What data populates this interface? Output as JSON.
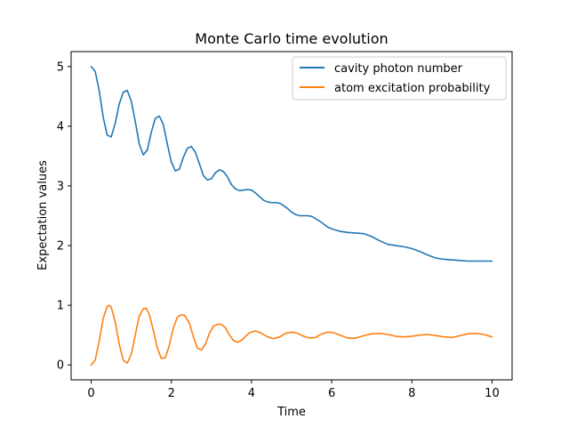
{
  "chart_data": {
    "type": "line",
    "title": "Monte Carlo time evolution",
    "xlabel": "Time",
    "ylabel": "Expectation values",
    "xlim": [
      -0.5,
      10.5
    ],
    "ylim": [
      -0.25,
      5.25
    ],
    "xticks": [
      0,
      2,
      4,
      6,
      8,
      10
    ],
    "yticks": [
      0,
      1,
      2,
      3,
      4,
      5
    ],
    "grid": false,
    "legend_position": "upper right",
    "series": [
      {
        "name": "cavity photon number",
        "color": "#1f77b4",
        "x": [
          0,
          0.1,
          0.2,
          0.3,
          0.4,
          0.5,
          0.6,
          0.7,
          0.8,
          0.9,
          1.0,
          1.1,
          1.2,
          1.3,
          1.4,
          1.5,
          1.6,
          1.7,
          1.8,
          1.9,
          2.0,
          2.1,
          2.2,
          2.3,
          2.4,
          2.5,
          2.6,
          2.7,
          2.8,
          2.9,
          3.0,
          3.1,
          3.2,
          3.3,
          3.4,
          3.5,
          3.6,
          3.7,
          3.8,
          3.9,
          4.0,
          4.1,
          4.2,
          4.3,
          4.4,
          4.5,
          4.6,
          4.7,
          4.8,
          4.9,
          5.0,
          5.1,
          5.2,
          5.3,
          5.4,
          5.5,
          5.6,
          5.7,
          5.8,
          5.9,
          6.0,
          6.2,
          6.4,
          6.6,
          6.8,
          7.0,
          7.2,
          7.4,
          7.6,
          7.8,
          8.0,
          8.2,
          8.4,
          8.6,
          8.8,
          9.0,
          9.2,
          9.4,
          9.6,
          9.8,
          10.0
        ],
        "values": [
          5.0,
          4.92,
          4.6,
          4.15,
          3.85,
          3.82,
          4.05,
          4.37,
          4.57,
          4.6,
          4.42,
          4.08,
          3.7,
          3.52,
          3.6,
          3.9,
          4.13,
          4.17,
          4.03,
          3.7,
          3.4,
          3.25,
          3.28,
          3.48,
          3.63,
          3.66,
          3.56,
          3.37,
          3.17,
          3.1,
          3.12,
          3.22,
          3.27,
          3.24,
          3.15,
          3.02,
          2.95,
          2.92,
          2.93,
          2.94,
          2.93,
          2.88,
          2.82,
          2.76,
          2.73,
          2.72,
          2.72,
          2.71,
          2.67,
          2.62,
          2.56,
          2.52,
          2.5,
          2.5,
          2.5,
          2.49,
          2.45,
          2.41,
          2.36,
          2.31,
          2.28,
          2.24,
          2.22,
          2.21,
          2.2,
          2.15,
          2.08,
          2.02,
          2.0,
          1.98,
          1.95,
          1.9,
          1.84,
          1.79,
          1.77,
          1.76,
          1.75,
          1.74,
          1.74,
          1.74,
          1.74
        ]
      },
      {
        "name": "atom excitation probability",
        "color": "#ff7f0e",
        "x": [
          0,
          0.1,
          0.2,
          0.3,
          0.4,
          0.45,
          0.5,
          0.6,
          0.7,
          0.8,
          0.9,
          1.0,
          1.1,
          1.2,
          1.3,
          1.37,
          1.45,
          1.55,
          1.65,
          1.75,
          1.85,
          1.95,
          2.05,
          2.15,
          2.25,
          2.33,
          2.45,
          2.55,
          2.65,
          2.75,
          2.85,
          2.95,
          3.05,
          3.15,
          3.25,
          3.35,
          3.45,
          3.55,
          3.65,
          3.75,
          3.85,
          3.95,
          4.1,
          4.25,
          4.4,
          4.55,
          4.7,
          4.85,
          5.0,
          5.15,
          5.3,
          5.45,
          5.6,
          5.75,
          5.9,
          6.05,
          6.2,
          6.4,
          6.6,
          6.8,
          7.0,
          7.2,
          7.4,
          7.6,
          7.8,
          8.0,
          8.2,
          8.4,
          8.6,
          8.8,
          9.0,
          9.2,
          9.4,
          9.6,
          9.8,
          10.0
        ],
        "values": [
          0.0,
          0.08,
          0.4,
          0.78,
          0.98,
          1.0,
          0.97,
          0.72,
          0.35,
          0.08,
          0.03,
          0.18,
          0.5,
          0.82,
          0.94,
          0.95,
          0.85,
          0.58,
          0.28,
          0.11,
          0.12,
          0.33,
          0.62,
          0.8,
          0.84,
          0.83,
          0.7,
          0.47,
          0.28,
          0.25,
          0.35,
          0.53,
          0.65,
          0.68,
          0.68,
          0.62,
          0.5,
          0.41,
          0.38,
          0.41,
          0.48,
          0.54,
          0.57,
          0.53,
          0.47,
          0.44,
          0.47,
          0.53,
          0.55,
          0.53,
          0.48,
          0.45,
          0.46,
          0.52,
          0.55,
          0.54,
          0.5,
          0.45,
          0.45,
          0.49,
          0.52,
          0.53,
          0.51,
          0.48,
          0.47,
          0.48,
          0.5,
          0.51,
          0.49,
          0.47,
          0.46,
          0.49,
          0.52,
          0.53,
          0.51,
          0.47
        ]
      }
    ]
  }
}
